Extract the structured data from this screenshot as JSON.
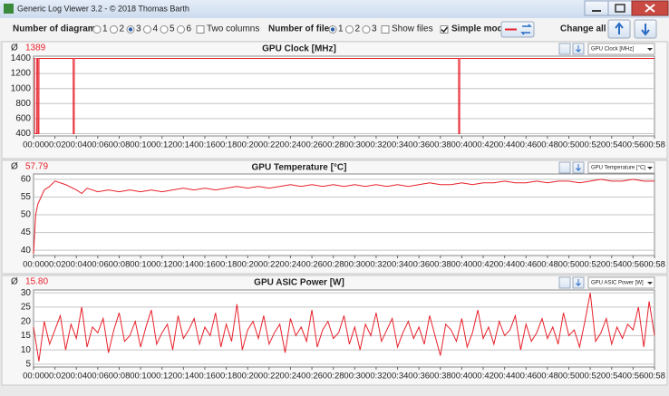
{
  "window": {
    "title": "Generic Log Viewer 3.2 - © 2018 Thomas Barth"
  },
  "toolbar": {
    "diagrams_label": "Number of diagrams",
    "diagram_options": [
      "1",
      "2",
      "3",
      "4",
      "5",
      "6"
    ],
    "diagrams_selected": "3",
    "two_columns": {
      "label": "Two columns",
      "checked": false
    },
    "files_label": "Number of files",
    "file_options": [
      "1",
      "2",
      "3"
    ],
    "files_selected": "1",
    "show_files": {
      "label": "Show files",
      "checked": false
    },
    "simple_mode": {
      "label": "Simple mode",
      "checked": true
    },
    "change_all": "Change all"
  },
  "chart_data": [
    {
      "type": "line",
      "title": "GPU Clock [MHz]",
      "average_symbol": "Ø",
      "average": 1389,
      "dropdown": "GPU Clock [MHz]",
      "color": "#e8212b",
      "x": [
        0,
        0.1,
        0.11,
        0.3,
        0.31,
        0.4,
        0.41,
        0.5,
        0.51,
        3.7,
        3.71,
        3.8,
        3.81,
        39.7,
        39.71,
        39.8,
        39.81,
        58
      ],
      "values": [
        1400,
        1400,
        400,
        400,
        1400,
        1400,
        400,
        400,
        1400,
        1400,
        400,
        400,
        1400,
        1400,
        400,
        400,
        1400,
        1400
      ],
      "xlim": [
        0,
        58
      ],
      "xticks": [
        {
          "value": 0,
          "label": "00:00"
        },
        {
          "value": 2,
          "label": "00:02"
        },
        {
          "value": 4,
          "label": "00:04"
        },
        {
          "value": 6,
          "label": "00:06"
        },
        {
          "value": 8,
          "label": "00:08"
        },
        {
          "value": 10,
          "label": "00:10"
        },
        {
          "value": 12,
          "label": "00:12"
        },
        {
          "value": 14,
          "label": "00:14"
        },
        {
          "value": 16,
          "label": "00:16"
        },
        {
          "value": 18,
          "label": "00:18"
        },
        {
          "value": 20,
          "label": "00:20"
        },
        {
          "value": 22,
          "label": "00:22"
        },
        {
          "value": 24,
          "label": "00:24"
        },
        {
          "value": 26,
          "label": "00:26"
        },
        {
          "value": 28,
          "label": "00:28"
        },
        {
          "value": 30,
          "label": "00:30"
        },
        {
          "value": 32,
          "label": "00:32"
        },
        {
          "value": 34,
          "label": "00:34"
        },
        {
          "value": 36,
          "label": "00:36"
        },
        {
          "value": 38,
          "label": "00:38"
        },
        {
          "value": 40,
          "label": "00:40"
        },
        {
          "value": 42,
          "label": "00:42"
        },
        {
          "value": 44,
          "label": "00:44"
        },
        {
          "value": 46,
          "label": "00:46"
        },
        {
          "value": 48,
          "label": "00:48"
        },
        {
          "value": 50,
          "label": "00:50"
        },
        {
          "value": 52,
          "label": "00:52"
        },
        {
          "value": 54,
          "label": "00:54"
        },
        {
          "value": 56,
          "label": "00:56"
        },
        {
          "value": 58,
          "label": "00:58"
        }
      ],
      "ylim": [
        370,
        1430
      ],
      "yticks": [
        400,
        600,
        800,
        1000,
        1200,
        1400
      ],
      "grid": true
    },
    {
      "type": "line",
      "title": "GPU Temperature [°C]",
      "average_symbol": "Ø",
      "average": 57.79,
      "dropdown": "GPU Temperature [°C]",
      "color": "#e8212b",
      "x": [
        0,
        0.2,
        0.4,
        0.7,
        1,
        1.5,
        2,
        3,
        4,
        4.5,
        5,
        6,
        7,
        8,
        9,
        10,
        11,
        12,
        13,
        14,
        15,
        16,
        17,
        18,
        19,
        20,
        21,
        22,
        23,
        24,
        25,
        26,
        27,
        28,
        29,
        30,
        31,
        32,
        33,
        34,
        35,
        36,
        37,
        38,
        39,
        40,
        41,
        42,
        43,
        44,
        45,
        46,
        47,
        48,
        49,
        50,
        51,
        52,
        53,
        54,
        55,
        56,
        57,
        58
      ],
      "values": [
        39,
        50,
        53,
        55,
        57,
        58,
        59.5,
        58.5,
        57,
        56,
        57.5,
        56.5,
        57,
        56.5,
        57,
        56.5,
        57,
        56.5,
        57,
        57.5,
        57,
        57.5,
        57,
        57.5,
        58,
        57.5,
        58,
        57.5,
        58,
        58.5,
        58,
        58.5,
        58,
        58.5,
        58,
        58.5,
        58,
        58.5,
        58,
        58.5,
        58,
        58.5,
        59,
        58.5,
        58.5,
        59,
        58.5,
        59,
        59,
        59.5,
        59,
        59,
        59.5,
        59,
        59.5,
        59.5,
        59,
        59.5,
        60,
        59.5,
        59.5,
        60,
        59.5,
        59.5
      ],
      "xlim": [
        0,
        58
      ],
      "xticks": [
        {
          "value": 0,
          "label": "00:00"
        },
        {
          "value": 2,
          "label": "00:02"
        },
        {
          "value": 4,
          "label": "00:04"
        },
        {
          "value": 6,
          "label": "00:06"
        },
        {
          "value": 8,
          "label": "00:08"
        },
        {
          "value": 10,
          "label": "00:10"
        },
        {
          "value": 12,
          "label": "00:12"
        },
        {
          "value": 14,
          "label": "00:14"
        },
        {
          "value": 16,
          "label": "00:16"
        },
        {
          "value": 18,
          "label": "00:18"
        },
        {
          "value": 20,
          "label": "00:20"
        },
        {
          "value": 22,
          "label": "00:22"
        },
        {
          "value": 24,
          "label": "00:24"
        },
        {
          "value": 26,
          "label": "00:26"
        },
        {
          "value": 28,
          "label": "00:28"
        },
        {
          "value": 30,
          "label": "00:30"
        },
        {
          "value": 32,
          "label": "00:32"
        },
        {
          "value": 34,
          "label": "00:34"
        },
        {
          "value": 36,
          "label": "00:36"
        },
        {
          "value": 38,
          "label": "00:38"
        },
        {
          "value": 40,
          "label": "00:40"
        },
        {
          "value": 42,
          "label": "00:42"
        },
        {
          "value": 44,
          "label": "00:44"
        },
        {
          "value": 46,
          "label": "00:46"
        },
        {
          "value": 48,
          "label": "00:48"
        },
        {
          "value": 50,
          "label": "00:50"
        },
        {
          "value": 52,
          "label": "00:52"
        },
        {
          "value": 54,
          "label": "00:54"
        },
        {
          "value": 56,
          "label": "00:56"
        },
        {
          "value": 58,
          "label": "00:58"
        }
      ],
      "ylim": [
        38.5,
        61.5
      ],
      "yticks": [
        40,
        45,
        50,
        55,
        60
      ],
      "grid": true
    },
    {
      "type": "line",
      "title": "GPU ASIC Power [W]",
      "average_symbol": "Ø",
      "average": 15.8,
      "average_label": "15.80",
      "dropdown": "GPU ASIC Power [W]",
      "color": "#e8212b",
      "x": [
        0,
        0.5,
        1,
        1.5,
        2,
        2.5,
        3,
        3.5,
        4,
        4.5,
        5,
        5.5,
        6,
        6.5,
        7,
        7.5,
        8,
        8.5,
        9,
        9.5,
        10,
        10.5,
        11,
        11.5,
        12,
        12.5,
        13,
        13.5,
        14,
        14.5,
        15,
        15.5,
        16,
        16.5,
        17,
        17.5,
        18,
        18.5,
        19,
        19.5,
        20,
        20.5,
        21,
        21.5,
        22,
        22.5,
        23,
        23.5,
        24,
        24.5,
        25,
        25.5,
        26,
        26.5,
        27,
        27.5,
        28,
        28.5,
        29,
        29.5,
        30,
        30.5,
        31,
        31.5,
        32,
        32.5,
        33,
        33.5,
        34,
        34.5,
        35,
        35.5,
        36,
        36.5,
        37,
        37.5,
        38,
        38.5,
        39,
        39.5,
        40,
        40.5,
        41,
        41.5,
        42,
        42.5,
        43,
        43.5,
        44,
        44.5,
        45,
        45.5,
        46,
        46.5,
        47,
        47.5,
        48,
        48.5,
        49,
        49.5,
        50,
        50.5,
        51,
        51.5,
        52,
        52.5,
        53,
        53.5,
        54,
        54.5,
        55,
        55.5,
        56,
        56.5,
        57,
        57.5,
        58
      ],
      "values": [
        18,
        6,
        20,
        12,
        17,
        22,
        10,
        19,
        14,
        25,
        11,
        18,
        16,
        21,
        9,
        17,
        23,
        13,
        15,
        20,
        11,
        18,
        24,
        12,
        16,
        19,
        10,
        22,
        14,
        17,
        21,
        12,
        18,
        15,
        23,
        11,
        19,
        13,
        26,
        10,
        17,
        20,
        14,
        22,
        12,
        16,
        19,
        9,
        21,
        15,
        18,
        13,
        24,
        11,
        17,
        20,
        14,
        16,
        22,
        12,
        18,
        10,
        19,
        15,
        23,
        13,
        17,
        21,
        11,
        16,
        20,
        14,
        18,
        12,
        22,
        15,
        8,
        19,
        17,
        13,
        21,
        11,
        16,
        24,
        14,
        18,
        12,
        20,
        15,
        17,
        22,
        10,
        19,
        13,
        16,
        21,
        14,
        18,
        12,
        23,
        15,
        17,
        11,
        20,
        30,
        13,
        16,
        21,
        12,
        18,
        14,
        19,
        17,
        25,
        11,
        27,
        15
      ],
      "xlim": [
        0,
        58
      ],
      "xticks": [
        {
          "value": 0,
          "label": "00:00"
        },
        {
          "value": 2,
          "label": "00:02"
        },
        {
          "value": 4,
          "label": "00:04"
        },
        {
          "value": 6,
          "label": "00:06"
        },
        {
          "value": 8,
          "label": "00:08"
        },
        {
          "value": 10,
          "label": "00:10"
        },
        {
          "value": 12,
          "label": "00:12"
        },
        {
          "value": 14,
          "label": "00:14"
        },
        {
          "value": 16,
          "label": "00:16"
        },
        {
          "value": 18,
          "label": "00:18"
        },
        {
          "value": 20,
          "label": "00:20"
        },
        {
          "value": 22,
          "label": "00:22"
        },
        {
          "value": 24,
          "label": "00:24"
        },
        {
          "value": 26,
          "label": "00:26"
        },
        {
          "value": 28,
          "label": "00:28"
        },
        {
          "value": 30,
          "label": "00:30"
        },
        {
          "value": 32,
          "label": "00:32"
        },
        {
          "value": 34,
          "label": "00:34"
        },
        {
          "value": 36,
          "label": "00:36"
        },
        {
          "value": 38,
          "label": "00:38"
        },
        {
          "value": 40,
          "label": "00:40"
        },
        {
          "value": 42,
          "label": "00:42"
        },
        {
          "value": 44,
          "label": "00:44"
        },
        {
          "value": 46,
          "label": "00:46"
        },
        {
          "value": 48,
          "label": "00:48"
        },
        {
          "value": 50,
          "label": "00:50"
        },
        {
          "value": 52,
          "label": "00:52"
        },
        {
          "value": 54,
          "label": "00:54"
        },
        {
          "value": 56,
          "label": "00:56"
        },
        {
          "value": 58,
          "label": "00:58"
        }
      ],
      "ylim": [
        4,
        31
      ],
      "yticks": [
        5,
        10,
        15,
        20,
        25,
        30
      ],
      "grid": true
    }
  ]
}
